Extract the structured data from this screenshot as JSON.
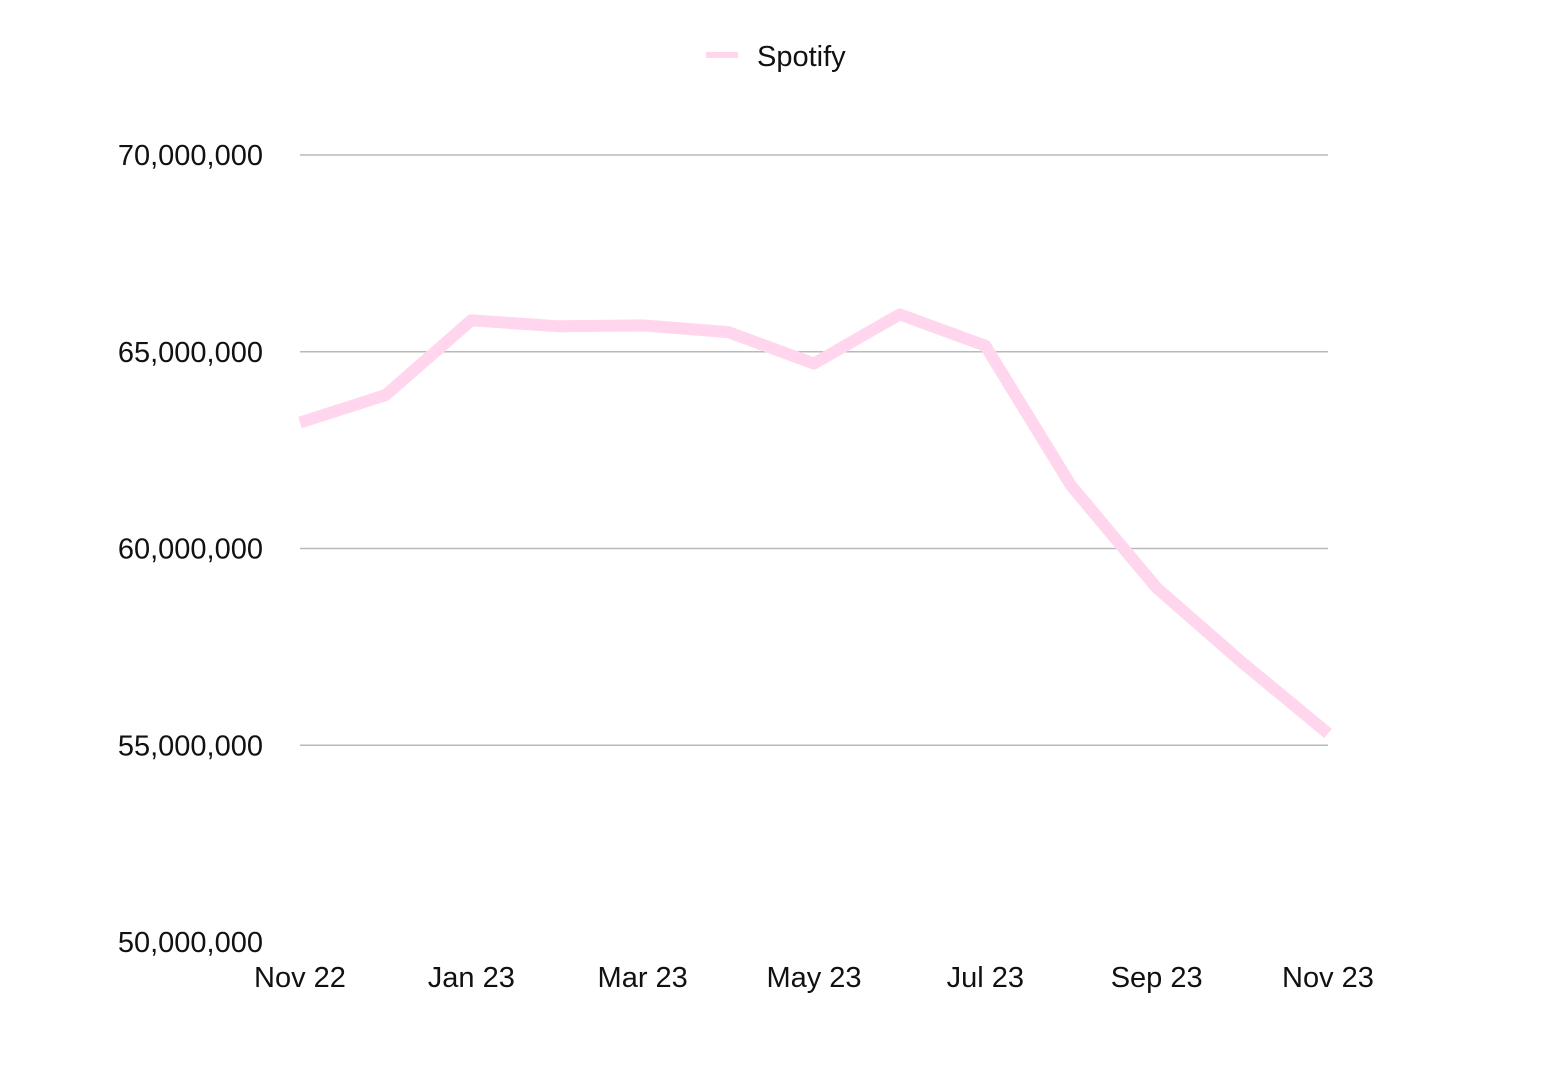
{
  "chart_data": {
    "type": "line",
    "title": "",
    "xlabel": "",
    "ylabel": "",
    "x": [
      "Nov 22",
      "Dec 22",
      "Jan 23",
      "Feb 23",
      "Mar 23",
      "Apr 23",
      "May 23",
      "Jun 23",
      "Jul 23",
      "Aug 23",
      "Sep 23",
      "Oct 23",
      "Nov 23"
    ],
    "x_tick_labels": [
      "Nov 22",
      "Jan 23",
      "Mar 23",
      "May 23",
      "Jul 23",
      "Sep 23",
      "Nov 23"
    ],
    "y_tick_labels": [
      "50,000,000",
      "55,000,000",
      "60,000,000",
      "65,000,000",
      "70,000,000"
    ],
    "y_ticks": [
      50000000,
      55000000,
      60000000,
      65000000,
      70000000
    ],
    "ylim": [
      50000000,
      70000000
    ],
    "grid": true,
    "legend_position": "top-center",
    "series": [
      {
        "name": "Spotify",
        "color": "#ffd6ee",
        "values": [
          63200000,
          63900000,
          65800000,
          65650000,
          65670000,
          65500000,
          64700000,
          65950000,
          65150000,
          61600000,
          59000000,
          57100000,
          55300000
        ]
      }
    ]
  }
}
